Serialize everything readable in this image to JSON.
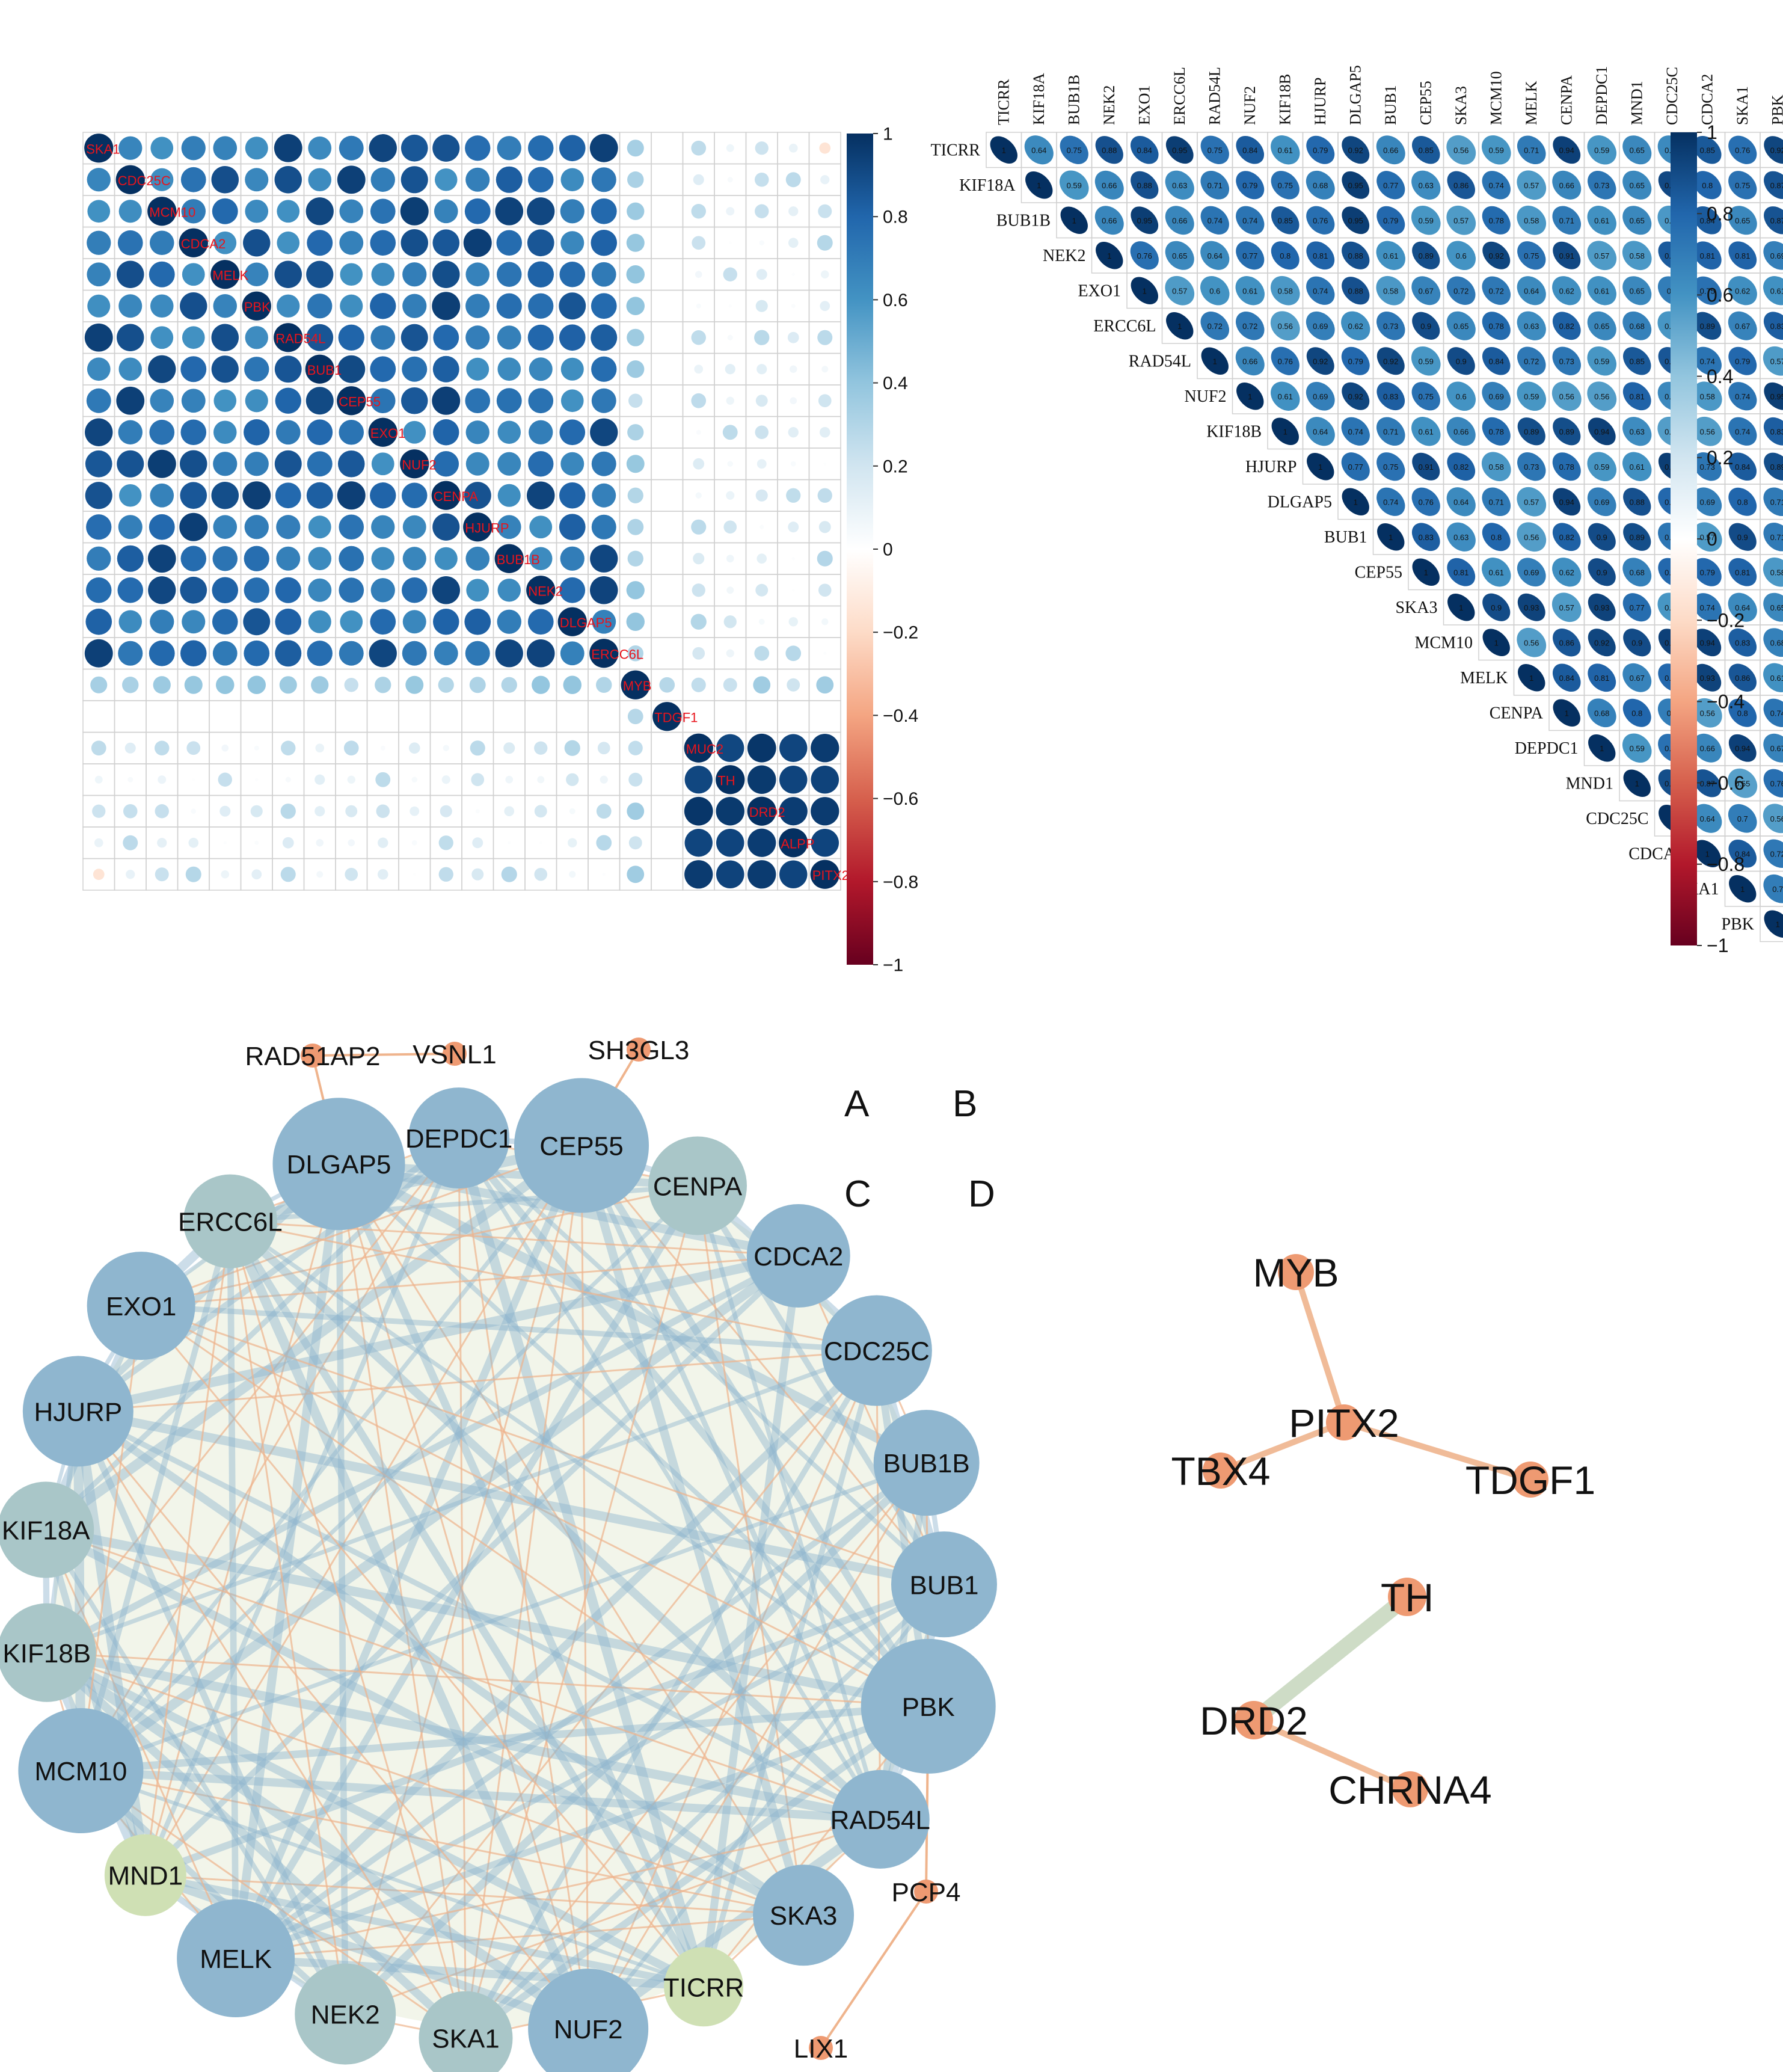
{
  "panel_labels": [
    "A",
    "B",
    "C",
    "D"
  ],
  "chart_data": [
    {
      "type": "heatmap",
      "id": "A",
      "title": "",
      "style": "circle-correlation-matrix",
      "genes": [
        "SKA1",
        "CDC25C",
        "MCM10",
        "CDCA2",
        "MELK",
        "PBK",
        "RAD54L",
        "BUB1",
        "CEP55",
        "EXO1",
        "NUF2",
        "CENPA",
        "HJURP",
        "BUB1B",
        "NEK2",
        "DLGAP5",
        "ERCC6L",
        "MYB",
        "TDGF1",
        "MUC2",
        "TH",
        "DRD2",
        "ALPP",
        "PITX2"
      ],
      "blocks": {
        "proliferation_block_correlation_range": [
          0.6,
          0.95
        ],
        "myb_row_correlation_range": [
          0.2,
          0.4
        ],
        "tdgf1_row_correlation": 0.0,
        "lower_block_correlation_range": [
          0.9,
          1.0
        ],
        "cross_block_correlation_range": [
          0.0,
          0.3
        ]
      },
      "colorbar": {
        "min": -1,
        "max": 1,
        "ticks": [
          "1",
          "0.8",
          "0.6",
          "0.4",
          "0.2",
          "0",
          "−0.2",
          "−0.4",
          "−0.6",
          "−0.8",
          "−1"
        ],
        "low_color": "#67001f",
        "mid_color": "#ffffff",
        "high_color": "#053061"
      }
    },
    {
      "type": "heatmap",
      "id": "B",
      "title": "",
      "style": "upper-triangle-ellipse-matrix",
      "genes": [
        "TICRR",
        "KIF18A",
        "BUB1B",
        "NEK2",
        "EXO1",
        "ERCC6L",
        "RAD54L",
        "NUF2",
        "KIF18B",
        "HJURP",
        "DLGAP5",
        "BUB1",
        "CEP55",
        "SKA3",
        "MCM10",
        "MELK",
        "CENPA",
        "DEPDC1",
        "MND1",
        "CDC25C",
        "CDCA2",
        "SKA1",
        "PBK"
      ],
      "diagonal_value": 1,
      "off_diagonal_range": [
        0.55,
        0.95
      ],
      "colorbar": {
        "min": -1,
        "max": 1,
        "ticks": [
          "1",
          "0.8",
          "0.6",
          "0.4",
          "0.2",
          "0",
          "−0.2",
          "−0.4",
          "−0.6",
          "−0.8",
          "−1"
        ]
      }
    },
    {
      "type": "network",
      "id": "C",
      "circle_nodes": [
        "DLGAP5",
        "DEPDC1",
        "CEP55",
        "CENPA",
        "CDCA2",
        "CDC25C",
        "BUB1B",
        "BUB1",
        "PBK",
        "RAD54L",
        "SKA3",
        "TICRR",
        "NUF2",
        "SKA1",
        "NEK2",
        "MELK",
        "MND1",
        "MCM10",
        "KIF18B",
        "KIF18A",
        "HJURP",
        "EXO1",
        "ERCC6L"
      ],
      "satellite_nodes": [
        "RAD51AP2",
        "VSNL1",
        "SH3GL3",
        "PCP4",
        "LIX1"
      ],
      "satellite_edges": [
        [
          "RAD51AP2",
          "VSNL1"
        ],
        [
          "RAD51AP2",
          "DLGAP5"
        ],
        [
          "SH3GL3",
          "CEP55"
        ],
        [
          "PBK",
          "PCP4"
        ],
        [
          "PCP4",
          "LIX1"
        ]
      ]
    },
    {
      "type": "network",
      "id": "D",
      "nodes": [
        "MYB",
        "PITX2",
        "TBX4",
        "TDGF1",
        "TH",
        "DRD2",
        "CHRNA4"
      ],
      "edges": [
        [
          "MYB",
          "PITX2"
        ],
        [
          "PITX2",
          "TBX4"
        ],
        [
          "PITX2",
          "TDGF1"
        ],
        [
          "TH",
          "DRD2"
        ],
        [
          "DRD2",
          "CHRNA4"
        ]
      ]
    }
  ]
}
